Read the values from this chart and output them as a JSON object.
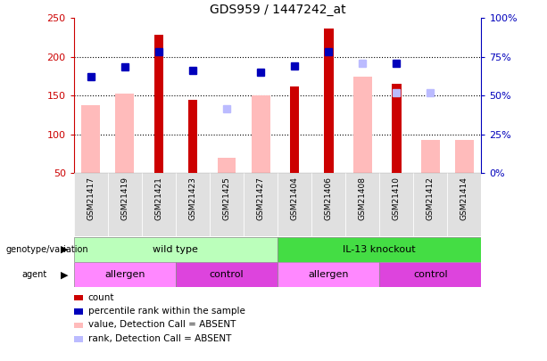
{
  "title": "GDS959 / 1447242_at",
  "samples": [
    "GSM21417",
    "GSM21419",
    "GSM21421",
    "GSM21423",
    "GSM21425",
    "GSM21427",
    "GSM21404",
    "GSM21406",
    "GSM21408",
    "GSM21410",
    "GSM21412",
    "GSM21414"
  ],
  "count_bars": [
    null,
    null,
    228,
    145,
    null,
    null,
    162,
    236,
    null,
    165,
    null,
    null
  ],
  "value_absent_bars": [
    138,
    153,
    null,
    null,
    70,
    150,
    null,
    null,
    174,
    null,
    93,
    93
  ],
  "percentile_rank": [
    175,
    187,
    207,
    183,
    null,
    180,
    188,
    207,
    null,
    192,
    null,
    null
  ],
  "rank_absent": [
    null,
    null,
    null,
    null,
    133,
    null,
    null,
    null,
    192,
    154,
    154,
    null
  ],
  "ylim_left": [
    50,
    250
  ],
  "yticks_left": [
    50,
    100,
    150,
    200,
    250
  ],
  "yticks_right": [
    0,
    25,
    50,
    75,
    100
  ],
  "ytick_labels_right": [
    "0%",
    "25%",
    "50%",
    "75%",
    "100%"
  ],
  "color_count": "#cc0000",
  "color_pct_rank": "#0000bb",
  "color_value_absent": "#ffbbbb",
  "color_rank_absent": "#bbbbff",
  "genotype_groups": [
    {
      "label": "wild type",
      "span": [
        0,
        5
      ],
      "color": "#bbffbb"
    },
    {
      "label": "IL-13 knockout",
      "span": [
        6,
        11
      ],
      "color": "#44dd44"
    }
  ],
  "agent_groups": [
    {
      "label": "allergen",
      "span": [
        0,
        2
      ],
      "color": "#ff88ff"
    },
    {
      "label": "control",
      "span": [
        3,
        5
      ],
      "color": "#dd44dd"
    },
    {
      "label": "allergen",
      "span": [
        6,
        8
      ],
      "color": "#ff88ff"
    },
    {
      "label": "control",
      "span": [
        9,
        11
      ],
      "color": "#dd44dd"
    }
  ],
  "legend_items": [
    {
      "label": "count",
      "color": "#cc0000"
    },
    {
      "label": "percentile rank within the sample",
      "color": "#0000bb"
    },
    {
      "label": "value, Detection Call = ABSENT",
      "color": "#ffbbbb"
    },
    {
      "label": "rank, Detection Call = ABSENT",
      "color": "#bbbbff"
    }
  ],
  "left_axis_color": "#cc0000",
  "right_axis_color": "#0000bb"
}
